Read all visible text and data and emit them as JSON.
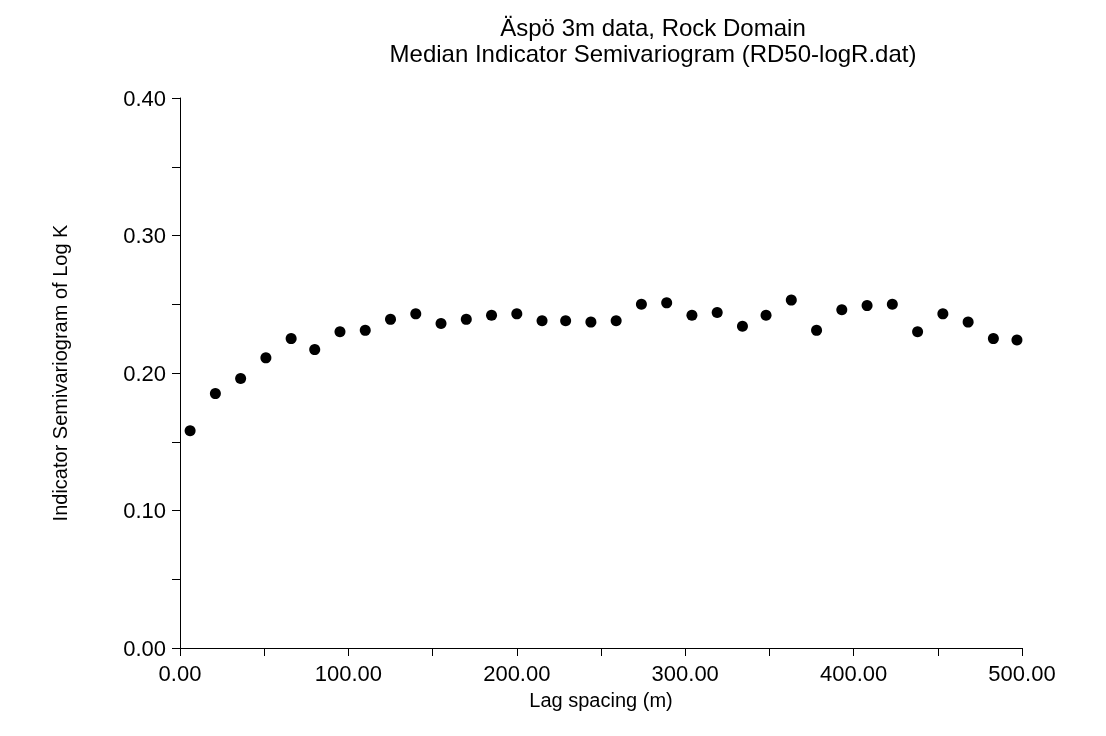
{
  "chart_data": {
    "type": "scatter",
    "title": "Äspö 3m data, Rock Domain",
    "subtitle": "Median Indicator Semivariogram (RD50-logR.dat)",
    "xlabel": "Lag spacing (m)",
    "ylabel": "Indicator Semivariogram of Log K",
    "x": [
      6,
      21,
      36,
      51,
      66,
      80,
      95,
      110,
      125,
      140,
      155,
      170,
      185,
      200,
      215,
      229,
      244,
      259,
      274,
      289,
      304,
      319,
      334,
      348,
      363,
      378,
      393,
      408,
      423,
      438,
      453,
      468,
      483,
      497
    ],
    "series": [
      {
        "color": "#000000",
        "values": [
          0.158,
          0.185,
          0.196,
          0.211,
          0.225,
          0.217,
          0.23,
          0.231,
          0.239,
          0.243,
          0.236,
          0.239,
          0.242,
          0.243,
          0.238,
          0.238,
          0.237,
          0.238,
          0.25,
          0.251,
          0.242,
          0.244,
          0.234,
          0.242,
          0.253,
          0.231,
          0.246,
          0.249,
          0.25,
          0.23,
          0.243,
          0.237,
          0.225,
          0.224
        ]
      }
    ],
    "xlim": [
      0,
      500
    ],
    "ylim": [
      0,
      0.4
    ],
    "xticks": [
      {
        "value": 0,
        "label": "0.00"
      },
      {
        "value": 50,
        "label": null
      },
      {
        "value": 100,
        "label": "100.00"
      },
      {
        "value": 150,
        "label": null
      },
      {
        "value": 200,
        "label": "200.00"
      },
      {
        "value": 250,
        "label": null
      },
      {
        "value": 300,
        "label": "300.00"
      },
      {
        "value": 350,
        "label": null
      },
      {
        "value": 400,
        "label": "400.00"
      },
      {
        "value": 450,
        "label": null
      },
      {
        "value": 500,
        "label": "500.00"
      }
    ],
    "yticks": [
      {
        "value": 0,
        "label": "0.00"
      },
      {
        "value": 0.05,
        "label": null
      },
      {
        "value": 0.1,
        "label": "0.10"
      },
      {
        "value": 0.15,
        "label": null
      },
      {
        "value": 0.2,
        "label": "0.20"
      },
      {
        "value": 0.25,
        "label": null
      },
      {
        "value": 0.3,
        "label": "0.30"
      },
      {
        "value": 0.35,
        "label": null
      },
      {
        "value": 0.4,
        "label": "0.40"
      }
    ],
    "grid": false,
    "marker": "circle"
  }
}
